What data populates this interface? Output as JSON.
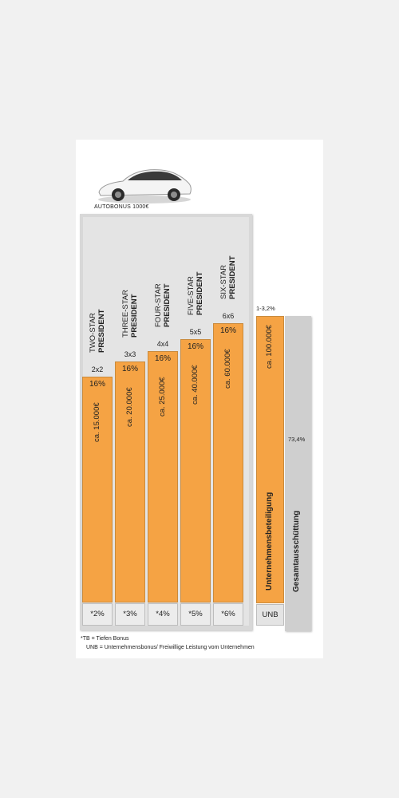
{
  "header": {
    "auto_bonus": "AUTOBONUS 1000€"
  },
  "chart_data": {
    "type": "bar",
    "categories": [
      "TWO-STAR PRESIDENT",
      "THREE-STAR PRESIDENT",
      "FOUR-STAR PRESIDENT",
      "FIVE-STAR PRESIDENT",
      "SIX-STAR PRESIDENT"
    ],
    "bars": [
      {
        "rank1": "TWO-STAR",
        "rank2": "PRESIDENT",
        "level": "2x2",
        "pct": "16%",
        "value_label": "ca. 15.000€",
        "tb": "*2%"
      },
      {
        "rank1": "THREE-STAR",
        "rank2": "PRESIDENT",
        "level": "3x3",
        "pct": "16%",
        "value_label": "ca. 20.000€",
        "tb": "*3%"
      },
      {
        "rank1": "FOUR-STAR",
        "rank2": "PRESIDENT",
        "level": "4x4",
        "pct": "16%",
        "value_label": "ca. 25.000€",
        "tb": "*4%"
      },
      {
        "rank1": "FIVE-STAR",
        "rank2": "PRESIDENT",
        "level": "5x5",
        "pct": "16%",
        "value_label": "ca. 40.000€",
        "tb": "*5%"
      },
      {
        "rank1": "SIX-STAR",
        "rank2": "PRESIDENT",
        "level": "6x6",
        "pct": "16%",
        "value_label": "ca. 60.000€",
        "tb": "*6%"
      }
    ],
    "values": [
      15000,
      20000,
      25000,
      40000,
      60000
    ],
    "unb": {
      "range": "1-3,2%",
      "value_label": "ca. 100.000€",
      "name": "Unternehmensbeteiligung",
      "cell": "UNB"
    },
    "total": {
      "pct": "73,4%",
      "name": "Gesamtausschüttung"
    },
    "colors": {
      "bar": "#f5a344",
      "panel": "#d8d8d8",
      "total": "#cfcfcf"
    }
  },
  "footnotes": {
    "tb": "*TB = Tiefen Bonus",
    "unb": "UNB = Unternehmensbonus/ Freiwillige Leistung vom Unternehmen"
  }
}
